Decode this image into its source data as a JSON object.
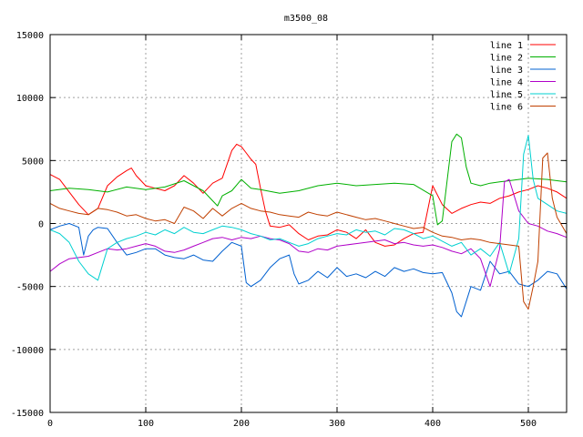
{
  "chart_data": {
    "type": "line",
    "title": "m3500_08",
    "xlabel": "",
    "ylabel": "",
    "xlim": [
      0,
      540
    ],
    "ylim": [
      -15000,
      15000
    ],
    "x_ticks": [
      0,
      100,
      200,
      300,
      400,
      500
    ],
    "y_ticks": [
      -15000,
      -10000,
      -5000,
      0,
      5000,
      10000,
      15000
    ],
    "grid": true,
    "legend_position": "top-right",
    "series": [
      {
        "name": "line 1",
        "color": "#ff0000",
        "x": [
          0,
          10,
          20,
          30,
          40,
          50,
          60,
          70,
          80,
          85,
          90,
          100,
          110,
          120,
          130,
          140,
          150,
          160,
          170,
          180,
          190,
          195,
          200,
          205,
          210,
          215,
          220,
          225,
          230,
          240,
          250,
          260,
          270,
          280,
          290,
          300,
          310,
          320,
          330,
          340,
          350,
          360,
          370,
          380,
          390,
          400,
          410,
          420,
          430,
          440,
          450,
          460,
          470,
          480,
          490,
          500,
          510,
          520,
          530,
          540
        ],
        "values": [
          3900,
          3500,
          2500,
          1500,
          700,
          1200,
          3000,
          3700,
          4200,
          4400,
          3800,
          3000,
          2800,
          2600,
          3000,
          3800,
          3200,
          2400,
          3200,
          3600,
          5800,
          6300,
          6100,
          5600,
          5100,
          4700,
          2800,
          1000,
          -200,
          -300,
          -100,
          -800,
          -1300,
          -1000,
          -900,
          -500,
          -700,
          -1200,
          -500,
          -1500,
          -1800,
          -1700,
          -1200,
          -800,
          -700,
          3000,
          1500,
          800,
          1200,
          1500,
          1700,
          1600,
          2000,
          2200,
          2500,
          2700,
          3000,
          2800,
          2500,
          2000
        ]
      },
      {
        "name": "line 2",
        "color": "#00b000",
        "x": [
          0,
          20,
          40,
          60,
          80,
          100,
          120,
          140,
          150,
          160,
          170,
          175,
          180,
          190,
          200,
          210,
          220,
          240,
          260,
          280,
          300,
          320,
          340,
          360,
          380,
          400,
          405,
          410,
          420,
          425,
          430,
          435,
          440,
          450,
          460,
          470,
          480,
          500,
          520,
          530,
          540
        ],
        "values": [
          2600,
          2800,
          2700,
          2500,
          2900,
          2700,
          2900,
          3400,
          3000,
          2600,
          1800,
          1400,
          2200,
          2600,
          3500,
          2800,
          2700,
          2400,
          2600,
          3000,
          3200,
          3000,
          3100,
          3200,
          3100,
          2200,
          -100,
          200,
          6500,
          7100,
          6800,
          4500,
          3200,
          3000,
          3200,
          3300,
          3400,
          3600,
          3500,
          3400,
          3300
        ]
      },
      {
        "name": "line 3",
        "color": "#0060d0",
        "x": [
          0,
          10,
          20,
          30,
          35,
          40,
          45,
          50,
          60,
          70,
          80,
          90,
          100,
          110,
          120,
          130,
          140,
          150,
          160,
          170,
          180,
          190,
          200,
          205,
          210,
          220,
          230,
          240,
          250,
          255,
          260,
          270,
          280,
          290,
          300,
          310,
          320,
          330,
          340,
          350,
          360,
          370,
          380,
          390,
          400,
          410,
          420,
          425,
          430,
          440,
          450,
          460,
          470,
          480,
          490,
          500,
          510,
          520,
          530,
          540
        ],
        "values": [
          -500,
          -200,
          0,
          -300,
          -2500,
          -1000,
          -500,
          -300,
          -400,
          -1500,
          -2500,
          -2300,
          -2000,
          -2000,
          -2500,
          -2700,
          -2800,
          -2500,
          -2900,
          -3000,
          -2200,
          -1500,
          -1800,
          -4700,
          -5000,
          -4500,
          -3500,
          -2800,
          -2500,
          -4000,
          -4800,
          -4500,
          -3800,
          -4300,
          -3500,
          -4200,
          -4000,
          -4300,
          -3800,
          -4200,
          -3500,
          -3800,
          -3600,
          -3900,
          -4000,
          -3900,
          -5500,
          -7000,
          -7400,
          -5000,
          -5300,
          -3000,
          -4000,
          -3800,
          -4800,
          -5000,
          -4500,
          -3800,
          -4000,
          -5200
        ]
      },
      {
        "name": "line 4",
        "color": "#b000c8",
        "x": [
          0,
          10,
          20,
          30,
          40,
          50,
          60,
          70,
          80,
          90,
          100,
          110,
          120,
          130,
          140,
          150,
          160,
          170,
          180,
          190,
          200,
          210,
          220,
          230,
          240,
          250,
          260,
          270,
          280,
          290,
          300,
          310,
          320,
          330,
          340,
          350,
          360,
          370,
          380,
          390,
          400,
          410,
          420,
          430,
          440,
          450,
          460,
          470,
          475,
          480,
          490,
          500,
          510,
          520,
          530,
          540
        ],
        "values": [
          -3800,
          -3200,
          -2800,
          -2700,
          -2600,
          -2300,
          -2000,
          -2100,
          -2000,
          -1800,
          -1600,
          -1800,
          -2200,
          -2300,
          -2100,
          -1800,
          -1500,
          -1200,
          -1100,
          -1300,
          -1100,
          -1200,
          -1000,
          -1200,
          -1300,
          -1600,
          -2200,
          -2300,
          -2000,
          -2100,
          -1800,
          -1700,
          -1600,
          -1500,
          -1400,
          -1300,
          -1600,
          -1500,
          -1700,
          -1800,
          -1700,
          -1900,
          -2200,
          -2400,
          -2000,
          -2800,
          -5000,
          -2000,
          3300,
          3500,
          1000,
          0,
          -200,
          -600,
          -800,
          -1100
        ]
      },
      {
        "name": "line 5",
        "color": "#00d0d0",
        "x": [
          0,
          10,
          20,
          30,
          40,
          50,
          60,
          70,
          80,
          90,
          100,
          110,
          120,
          130,
          140,
          150,
          160,
          170,
          180,
          190,
          200,
          210,
          220,
          230,
          240,
          250,
          260,
          270,
          280,
          290,
          300,
          310,
          320,
          330,
          340,
          350,
          360,
          370,
          380,
          390,
          400,
          410,
          420,
          430,
          440,
          450,
          460,
          470,
          480,
          490,
          495,
          500,
          505,
          510,
          520,
          530,
          540
        ],
        "values": [
          -500,
          -800,
          -1500,
          -3000,
          -4000,
          -4500,
          -2000,
          -1500,
          -1200,
          -1000,
          -700,
          -900,
          -500,
          -800,
          -300,
          -700,
          -800,
          -500,
          -200,
          -300,
          -500,
          -800,
          -1000,
          -1300,
          -1200,
          -1500,
          -1800,
          -1600,
          -1200,
          -1000,
          -800,
          -900,
          -500,
          -700,
          -600,
          -900,
          -400,
          -500,
          -800,
          -1200,
          -1000,
          -1400,
          -1800,
          -1500,
          -2500,
          -2000,
          -2600,
          -1500,
          -4000,
          -1200,
          5500,
          7000,
          3500,
          2000,
          1500,
          1000,
          800
        ]
      },
      {
        "name": "line 6",
        "color": "#c04000",
        "x": [
          0,
          10,
          20,
          30,
          40,
          50,
          60,
          70,
          80,
          90,
          100,
          110,
          120,
          130,
          140,
          150,
          160,
          170,
          180,
          190,
          200,
          210,
          220,
          230,
          240,
          250,
          260,
          270,
          280,
          290,
          300,
          310,
          320,
          330,
          340,
          350,
          360,
          370,
          380,
          390,
          400,
          410,
          420,
          430,
          440,
          450,
          460,
          470,
          480,
          490,
          495,
          500,
          505,
          510,
          515,
          520,
          525,
          530,
          540
        ],
        "values": [
          1600,
          1200,
          1000,
          800,
          700,
          1200,
          1100,
          900,
          600,
          700,
          400,
          200,
          300,
          0,
          1300,
          1000,
          400,
          1200,
          600,
          1200,
          1600,
          1200,
          1000,
          900,
          700,
          600,
          500,
          900,
          700,
          600,
          900,
          700,
          500,
          300,
          400,
          200,
          0,
          -200,
          -400,
          -300,
          -700,
          -1000,
          -1100,
          -1300,
          -1200,
          -1300,
          -1500,
          -1600,
          -1700,
          -1800,
          -6200,
          -6800,
          -5000,
          -3000,
          5200,
          5600,
          2000,
          500,
          -800
        ]
      }
    ]
  }
}
